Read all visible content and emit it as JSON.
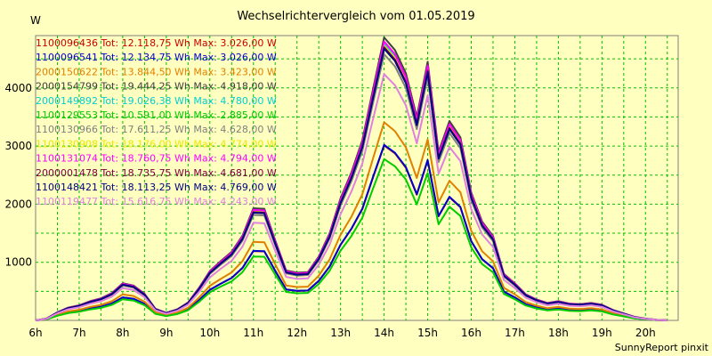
{
  "chart_data": {
    "type": "line",
    "title": "Wechselrichtervergleich vom 01.05.2019",
    "ylabel": "W",
    "xlabel": "",
    "footer": "SunnyReport pinxit",
    "x_hours": [
      6,
      6.25,
      6.5,
      6.75,
      7,
      7.25,
      7.5,
      7.75,
      8,
      8.25,
      8.5,
      8.75,
      9,
      9.25,
      9.5,
      9.75,
      10,
      10.25,
      10.5,
      10.75,
      11,
      11.25,
      11.5,
      11.75,
      12,
      12.25,
      12.5,
      12.75,
      13,
      13.25,
      13.5,
      13.75,
      14,
      14.25,
      14.5,
      14.75,
      15,
      15.25,
      15.5,
      15.75,
      16,
      16.25,
      16.5,
      16.75,
      17,
      17.25,
      17.5,
      17.75,
      18,
      18.25,
      18.5,
      18.75,
      19,
      19.25,
      19.5,
      19.75,
      20,
      20.25,
      20.5
    ],
    "x_tick_labels": [
      "6h",
      "7h",
      "8h",
      "9h",
      "10h",
      "11h",
      "12h",
      "13h",
      "14h",
      "15h",
      "16h",
      "17h",
      "18h",
      "19h",
      "20h"
    ],
    "y_ticks": [
      1000,
      2000,
      3000,
      4000
    ],
    "xlim": [
      6,
      20.75
    ],
    "ylim": [
      0,
      4900
    ],
    "grid": true,
    "legend_position": "top-left",
    "series": [
      {
        "name": "1100096436 Tot: 12.118,75 Wh Max: 3.026,00 W",
        "color": "#cc0000",
        "scale": 0.618
      },
      {
        "name": "1100096541 Tot: 12.134,75 Wh Max: 3.026,00 W",
        "color": "#0000cc",
        "scale": 0.62
      },
      {
        "name": "2000150622 Tot: 13.844,50 Wh Max: 3.423,00 W",
        "color": "#e08000",
        "scale": 0.7
      },
      {
        "name": "2000154799 Tot: 19.444,25 Wh Max: 4.918,00 W",
        "color": "#404040",
        "scale": 1.0
      },
      {
        "name": "2000149892 Tot: 19.026,38 Wh Max: 4.780,00 W",
        "color": "#00d0d0",
        "scale": 0.975
      },
      {
        "name": "1100129553 Tot: 10.591,00 Wh Max: 2.885,00 W",
        "color": "#00cc00",
        "scale": 0.57
      },
      {
        "name": "1100130966 Tot: 17.611,25 Wh Max: 4.628,00 W",
        "color": "#808080",
        "scale": 0.94
      },
      {
        "name": "1100130908 Tot: 18.176,00 Wh Max: 4.774,00 W",
        "color": "#e8e800",
        "scale": 0.97
      },
      {
        "name": "1100131074 Tot: 18.760,75 Wh Max: 4.794,00 W",
        "color": "#ff00ff",
        "scale": 0.985
      },
      {
        "name": "2000001478 Tot: 18.735,75 Wh Max: 4.681,00 W",
        "color": "#800040",
        "scale": 0.965
      },
      {
        "name": "1100148421 Tot: 18.113,25 Wh Max: 4.769,00 W",
        "color": "#000080",
        "scale": 0.96
      },
      {
        "name": "1100119477 Tot: 15.616,75 Wh Max: 4.243,00 W",
        "color": "#e080e0",
        "scale": 0.87
      }
    ],
    "base_profile": [
      0,
      30,
      140,
      220,
      260,
      330,
      380,
      470,
      640,
      600,
      460,
      200,
      130,
      190,
      310,
      560,
      850,
      1020,
      1180,
      1460,
      1930,
      1920,
      1380,
      860,
      820,
      830,
      1100,
      1500,
      2100,
      2550,
      3100,
      4000,
      4870,
      4650,
      4250,
      3500,
      4450,
      2900,
      3430,
      3150,
      2200,
      1700,
      1450,
      800,
      640,
      450,
      360,
      300,
      330,
      290,
      280,
      300,
      270,
      180,
      120,
      60,
      30,
      10,
      0
    ],
    "profile_scale": 0.72
  }
}
